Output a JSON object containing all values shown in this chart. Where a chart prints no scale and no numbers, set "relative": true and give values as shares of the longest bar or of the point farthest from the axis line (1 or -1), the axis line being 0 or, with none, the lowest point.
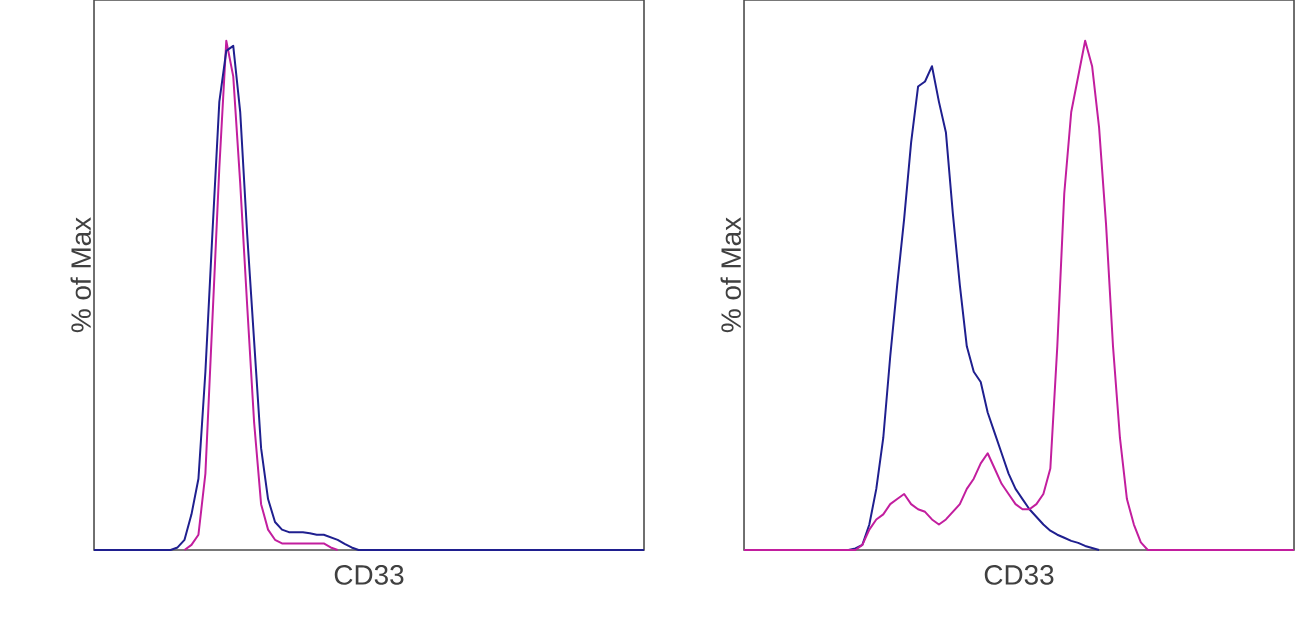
{
  "chart_data": [
    {
      "type": "line",
      "relative": true,
      "xlabel": "CD33",
      "ylabel": "% of Max",
      "categories": [
        null,
        null,
        null,
        null,
        null,
        null,
        null,
        null,
        null,
        null,
        null,
        null,
        null,
        null,
        null,
        null,
        null,
        null,
        null,
        null,
        null,
        null,
        null,
        null,
        null,
        null,
        null,
        null,
        null,
        null,
        null,
        null,
        null,
        null,
        null,
        null,
        null,
        null,
        null,
        null,
        null,
        null,
        null,
        null,
        null,
        null,
        null,
        null,
        null,
        null,
        null,
        null,
        null,
        null,
        null,
        null,
        null,
        null,
        null,
        null,
        null,
        null,
        null,
        null,
        null,
        null,
        null,
        null,
        null,
        null,
        null,
        null,
        null,
        null,
        null,
        null,
        null,
        null,
        null,
        null
      ],
      "series": [
        {
          "color": "#c21e9e",
          "values": [
            null,
            null,
            null,
            null,
            null,
            null,
            null,
            null,
            null,
            null,
            null,
            null,
            null,
            0,
            0.01,
            0.03,
            0.15,
            0.45,
            0.75,
            1,
            0.93,
            0.72,
            0.48,
            0.25,
            0.09,
            0.04,
            0.02,
            0.013,
            0.013,
            0.013,
            0.013,
            0.013,
            0.013,
            0.013,
            0.005,
            0,
            null,
            null,
            null,
            null,
            null,
            null,
            null,
            null,
            null,
            null,
            null,
            null,
            null,
            null,
            null,
            null,
            null,
            null,
            null,
            null,
            null,
            null,
            null,
            null,
            null,
            null,
            null,
            null,
            null,
            null,
            null,
            null,
            null,
            null,
            null,
            null,
            null,
            null,
            null,
            null,
            null,
            null,
            null,
            null
          ]
        },
        {
          "color": "#1f1f8f",
          "values": [
            0,
            0,
            0,
            0,
            0,
            0,
            0,
            0,
            0,
            0,
            0,
            0,
            0.005,
            0.02,
            0.07,
            0.14,
            0.35,
            0.62,
            0.88,
            0.98,
            0.99,
            0.86,
            0.62,
            0.41,
            0.2,
            0.1,
            0.055,
            0.04,
            0.035,
            0.035,
            0.035,
            0.033,
            0.03,
            0.03,
            0.025,
            0.02,
            0.012,
            0.005,
            0,
            0,
            0,
            0,
            0,
            0,
            0,
            0,
            0,
            0,
            0,
            0,
            0,
            0,
            0,
            0,
            0,
            0,
            0,
            0,
            0,
            0,
            0,
            0,
            0,
            0,
            0,
            0,
            0,
            0,
            0,
            0,
            0,
            0,
            0,
            0,
            0,
            0,
            0,
            0,
            0,
            0
          ]
        }
      ]
    },
    {
      "type": "line",
      "relative": true,
      "xlabel": "CD33",
      "ylabel": "% of Max",
      "categories": [
        null,
        null,
        null,
        null,
        null,
        null,
        null,
        null,
        null,
        null,
        null,
        null,
        null,
        null,
        null,
        null,
        null,
        null,
        null,
        null,
        null,
        null,
        null,
        null,
        null,
        null,
        null,
        null,
        null,
        null,
        null,
        null,
        null,
        null,
        null,
        null,
        null,
        null,
        null,
        null,
        null,
        null,
        null,
        null,
        null,
        null,
        null,
        null,
        null,
        null,
        null,
        null,
        null,
        null,
        null,
        null,
        null,
        null,
        null,
        null,
        null,
        null,
        null,
        null,
        null,
        null,
        null,
        null,
        null,
        null,
        null,
        null,
        null,
        null,
        null,
        null,
        null,
        null,
        null,
        null
      ],
      "series": [
        {
          "color": "#1f1f8f",
          "values": [
            null,
            null,
            null,
            null,
            null,
            null,
            null,
            null,
            null,
            null,
            null,
            null,
            null,
            null,
            null,
            0,
            0.003,
            0.01,
            0.05,
            0.12,
            0.22,
            0.38,
            0.52,
            0.65,
            0.8,
            0.91,
            0.92,
            0.95,
            0.88,
            0.82,
            0.66,
            0.52,
            0.4,
            0.35,
            0.33,
            0.27,
            0.23,
            0.19,
            0.15,
            0.12,
            0.1,
            0.08,
            0.065,
            0.05,
            0.038,
            0.03,
            0.024,
            0.018,
            0.014,
            0.008,
            0.004,
            0,
            null,
            null,
            null,
            null,
            null,
            null,
            null,
            null,
            null,
            null,
            null,
            null,
            null,
            null,
            null,
            null,
            null,
            null,
            null,
            null,
            null,
            null,
            null,
            null,
            null,
            null,
            null,
            null
          ]
        },
        {
          "color": "#c21e9e",
          "values": [
            0,
            0,
            0,
            0,
            0,
            0,
            0,
            0,
            0,
            0,
            0,
            0,
            0,
            0,
            0,
            0,
            0,
            0.01,
            0.04,
            0.06,
            0.07,
            0.09,
            0.1,
            0.11,
            0.09,
            0.08,
            0.075,
            0.06,
            0.05,
            0.06,
            0.075,
            0.09,
            0.12,
            0.14,
            0.17,
            0.19,
            0.16,
            0.13,
            0.11,
            0.09,
            0.08,
            0.08,
            0.09,
            0.11,
            0.16,
            0.4,
            0.7,
            0.86,
            0.93,
            1,
            0.95,
            0.83,
            0.64,
            0.4,
            0.22,
            0.1,
            0.05,
            0.015,
            0,
            0,
            0,
            0,
            0,
            0,
            0,
            0,
            0,
            0,
            0,
            0,
            0,
            0,
            0,
            0,
            0,
            0,
            0,
            0,
            0,
            0
          ]
        }
      ]
    }
  ]
}
